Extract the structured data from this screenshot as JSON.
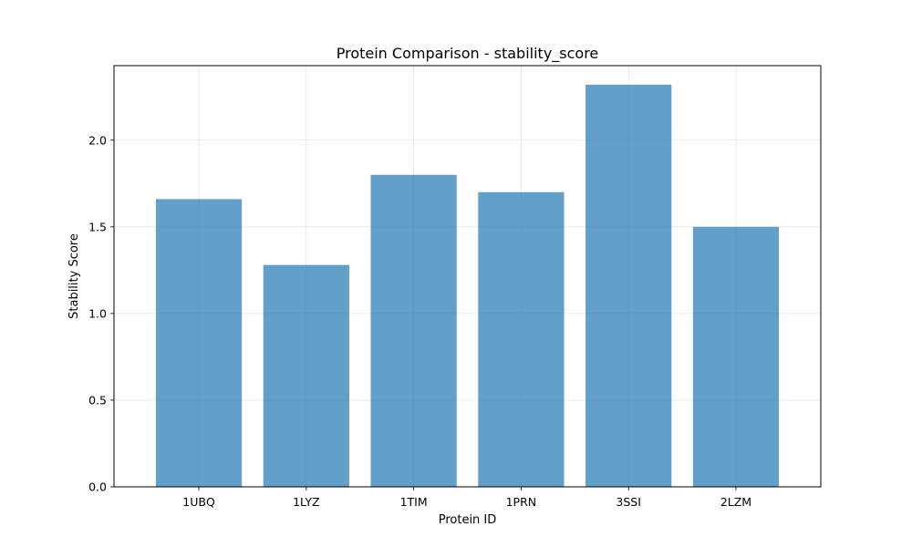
{
  "chart_data": {
    "type": "bar",
    "title": "Protein Comparison - stability_score",
    "xlabel": "Protein ID",
    "ylabel": "Stability Score",
    "categories": [
      "1UBQ",
      "1LYZ",
      "1TIM",
      "1PRN",
      "3SSI",
      "2LZM"
    ],
    "values": [
      1.66,
      1.28,
      1.8,
      1.7,
      2.32,
      1.5
    ],
    "ylim": [
      0,
      2.43
    ],
    "yticks": [
      0.0,
      0.5,
      1.0,
      1.5,
      2.0
    ],
    "ytick_labels": [
      "0.0",
      "0.5",
      "1.0",
      "1.5",
      "2.0"
    ],
    "bar_color": "#1f77b4",
    "bar_opacity": 0.7,
    "grid": true
  }
}
